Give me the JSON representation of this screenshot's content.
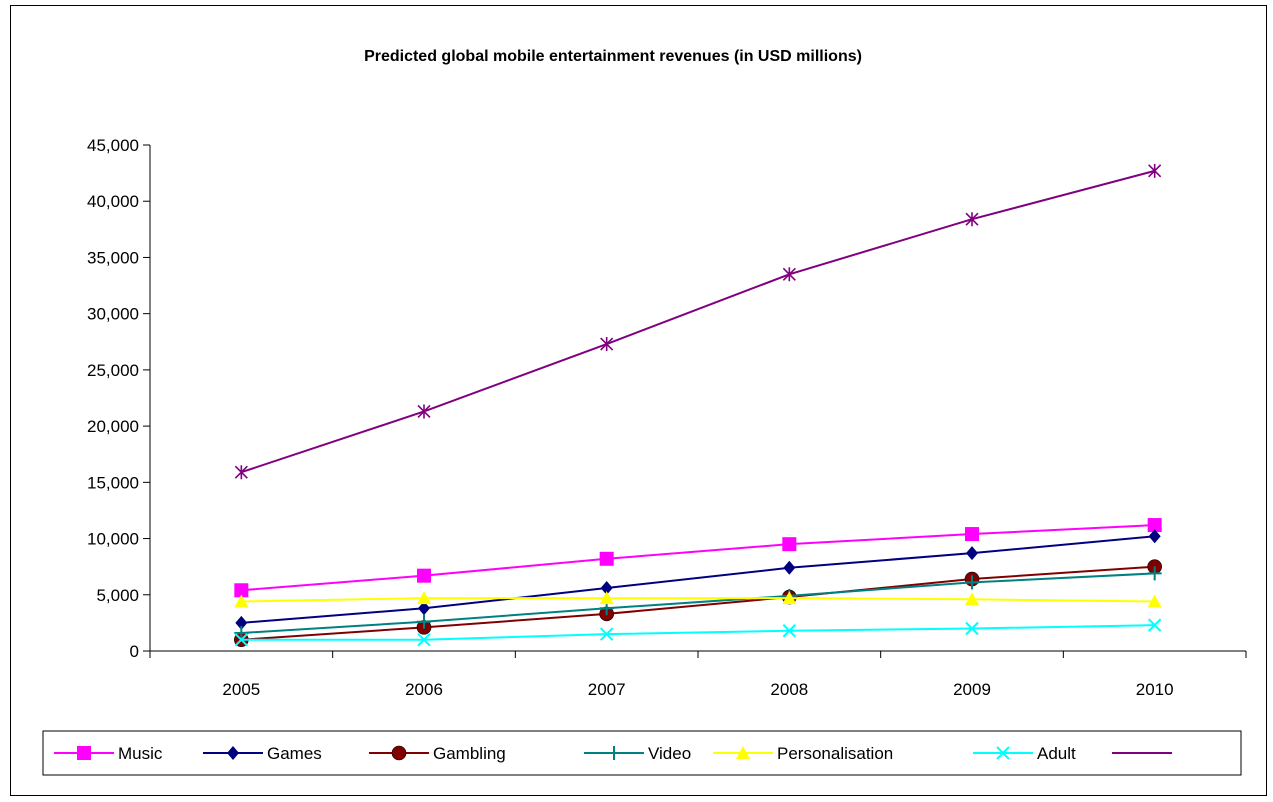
{
  "chart_data": {
    "type": "line",
    "title": "Predicted global mobile entertainment revenues (in USD millions)",
    "xlabel": "",
    "ylabel": "",
    "categories": [
      "2005",
      "2006",
      "2007",
      "2008",
      "2009",
      "2010"
    ],
    "ylim": [
      0,
      45000
    ],
    "yticks": [
      0,
      5000,
      10000,
      15000,
      20000,
      25000,
      30000,
      35000,
      40000,
      45000
    ],
    "ytick_labels": [
      "0",
      "5,000",
      "10,000",
      "15,000",
      "20,000",
      "25,000",
      "30,000",
      "35,000",
      "40,000",
      "45,000"
    ],
    "grid": false,
    "legend_position": "bottom",
    "series": [
      {
        "name": "Music",
        "color": "#FF00FF",
        "marker": "square",
        "values": [
          5400,
          6700,
          8200,
          9500,
          10400,
          11200
        ]
      },
      {
        "name": "Games",
        "color": "#000080",
        "marker": "diamond",
        "values": [
          2500,
          3800,
          5600,
          7400,
          8700,
          10200
        ]
      },
      {
        "name": "Gambling",
        "color": "#800000",
        "marker": "circle",
        "values": [
          1000,
          2100,
          3300,
          4800,
          6400,
          7500
        ]
      },
      {
        "name": "Video",
        "color": "#008080",
        "marker": "plus",
        "values": [
          1600,
          2600,
          3800,
          4900,
          6100,
          6900
        ]
      },
      {
        "name": "Personalisation",
        "color": "#FFFF00",
        "marker": "triangle",
        "values": [
          4400,
          4700,
          4700,
          4700,
          4600,
          4400
        ]
      },
      {
        "name": "Adult",
        "color": "#00FFFF",
        "marker": "x",
        "values": [
          1000,
          1000,
          1500,
          1800,
          2000,
          2300
        ]
      },
      {
        "color": "#800080",
        "marker": "star",
        "values": [
          15900,
          21300,
          27300,
          33500,
          38400,
          42700
        ]
      }
    ]
  }
}
